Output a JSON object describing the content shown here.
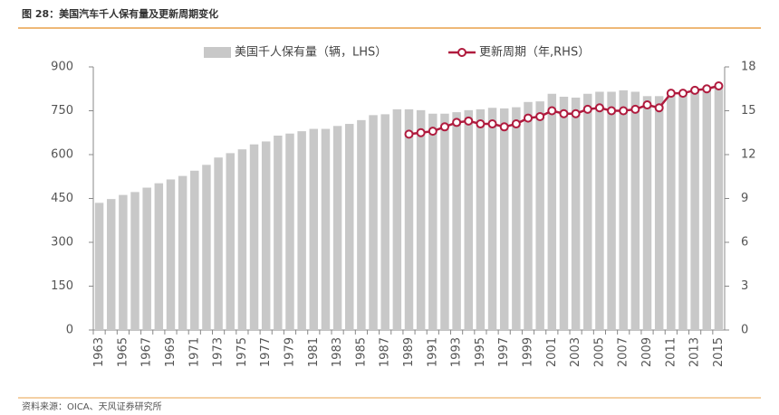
{
  "chart_data": {
    "type": "bar-line",
    "title": "图 28：美国汽车千人保有量及更新周期变化",
    "source": "资料来源：OICA、天风证券研究所",
    "categories": [
      "1963",
      null,
      "1965",
      null,
      "1967",
      null,
      "1969",
      null,
      "1971",
      null,
      "1973",
      null,
      "1975",
      null,
      "1977",
      null,
      "1979",
      null,
      "1981",
      null,
      "1983",
      null,
      "1985",
      null,
      "1987",
      null,
      "1989",
      null,
      "1991",
      null,
      "1993",
      null,
      "1995",
      null,
      "1997",
      null,
      "1999",
      null,
      "2001",
      null,
      "2003",
      null,
      "2005",
      null,
      "2007",
      null,
      "2009",
      null,
      "2011",
      null,
      "2013",
      null,
      "2015"
    ],
    "series": [
      {
        "name": "美国千人保有量（辆，LHS）",
        "type": "bar",
        "color": "#c8c8c8",
        "values": [
          435,
          448,
          462,
          472,
          487,
          502,
          515,
          527,
          545,
          565,
          590,
          605,
          618,
          635,
          645,
          665,
          672,
          680,
          688,
          688,
          698,
          705,
          718,
          735,
          738,
          755,
          755,
          752,
          740,
          740,
          745,
          752,
          755,
          760,
          758,
          762,
          780,
          782,
          808,
          798,
          795,
          808,
          815,
          815,
          820,
          815,
          800,
          800,
          805,
          810,
          815,
          820,
          830
        ]
      },
      {
        "name": "更新周期（年,RHS）",
        "type": "line",
        "axis": "y2",
        "color": "#b01b3e",
        "values": [
          null,
          null,
          null,
          null,
          null,
          null,
          null,
          null,
          null,
          null,
          null,
          null,
          null,
          null,
          null,
          null,
          null,
          null,
          null,
          null,
          null,
          null,
          null,
          null,
          null,
          null,
          13.4,
          13.5,
          13.6,
          13.9,
          14.2,
          14.3,
          14.1,
          14.1,
          13.9,
          14.1,
          14.5,
          14.6,
          15.0,
          14.8,
          14.8,
          15.1,
          15.2,
          15.0,
          15.0,
          15.1,
          15.4,
          15.2,
          16.2,
          16.2,
          16.4,
          16.5,
          16.7
        ]
      }
    ],
    "ylim": [
      0,
      900
    ],
    "yticks": [
      0,
      150,
      300,
      450,
      600,
      750,
      900
    ],
    "y2lim": [
      0,
      18
    ],
    "y2ticks": [
      0,
      3,
      6,
      9,
      12,
      15,
      18
    ]
  }
}
